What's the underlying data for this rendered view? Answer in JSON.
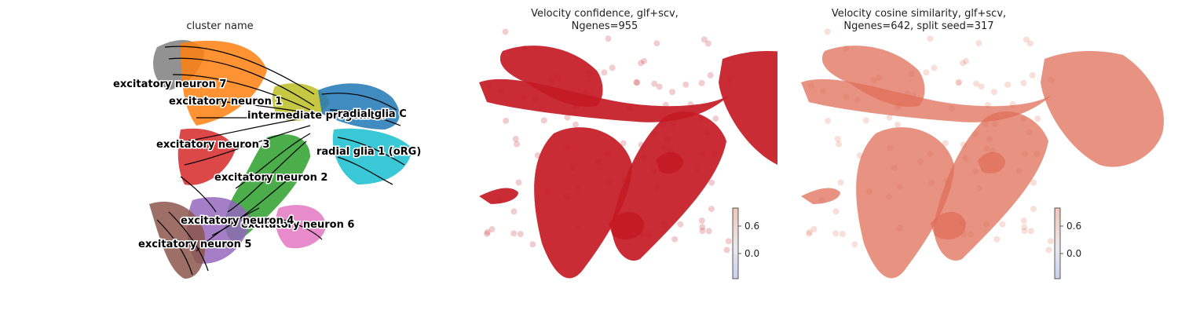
{
  "panels": [
    {
      "title": "cluster name"
    },
    {
      "title": "Velocity confidence, glf+scv,\nNgenes=955"
    },
    {
      "title": "Velocity cosine similarity, glf+scv,\nNgenes=642, split seed=317"
    }
  ],
  "chart_data": [
    {
      "type": "scatter",
      "title": "cluster name",
      "grid": false,
      "clusters": [
        {
          "name": "excitatory neuron 7",
          "color": "#7f7f7f"
        },
        {
          "name": "excitatory neuron 1",
          "color": "#ff7f0e"
        },
        {
          "name": "intermediate progenitor",
          "color": "#bcbd22"
        },
        {
          "name": "radial glia 1 (oRG)",
          "color": "#17becf"
        },
        {
          "name": "excitatory neuron 3",
          "color": "#d62728"
        },
        {
          "name": "excitatory neuron 2",
          "color": "#2ca02c"
        },
        {
          "name": "excitatory neuron 6",
          "color": "#e377c2"
        },
        {
          "name": "excitatory neuron 5",
          "color": "#8c564b"
        }
      ],
      "extra_labels": [
        "excitatory neuron 4",
        "radial glia C"
      ],
      "extra_colors": [
        "#9467bd",
        "#1f77b4"
      ],
      "overlay": "velocity streamlines"
    },
    {
      "type": "scatter",
      "title": "Velocity confidence, glf+scv, Ngenes=955",
      "grid": false,
      "colorbar": {
        "ticks": [
          "0.6",
          "0.0"
        ],
        "cmap": "coolwarm"
      },
      "point_color": "#c41a24"
    },
    {
      "type": "scatter",
      "title": "Velocity cosine similarity, glf+scv, Ngenes=642, split seed=317",
      "grid": false,
      "colorbar": {
        "ticks": [
          "0.6",
          "0.0"
        ],
        "cmap": "coolwarm"
      },
      "point_color": "#e06e58"
    }
  ]
}
